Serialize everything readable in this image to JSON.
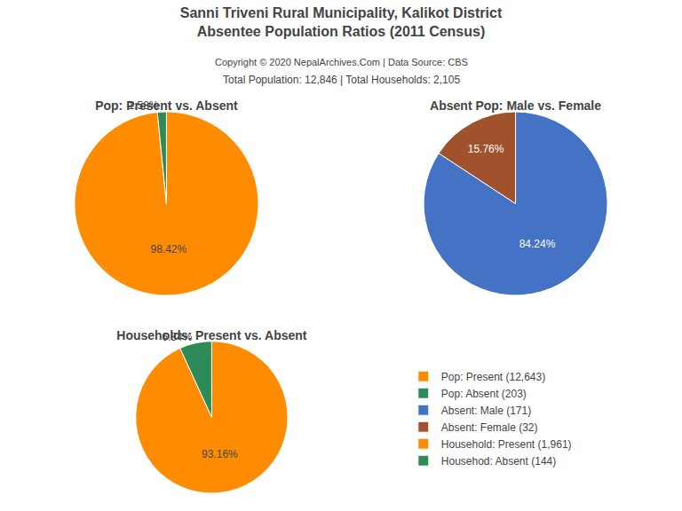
{
  "title": [
    "Sanni Triveni Rural Municipality, Kalikot District",
    "Absentee Population Ratios (2011 Census)"
  ],
  "subtitle": [
    "Copyright © 2020 NepalArchives.Com | Data Source: CBS",
    "Total Population: 12,846 | Total Households: 2,105"
  ],
  "legend": "lower right",
  "chart_data": [
    {
      "type": "pie",
      "title": "Pop: Present vs. Absent",
      "categories": [
        "Pop: Present (12,643)",
        "Pop: Absent (203)"
      ],
      "values": [
        98.42,
        1.58
      ],
      "value_labels": [
        "98.42%",
        "1.58%"
      ],
      "colors": [
        "#FF8C00",
        "#2E8B57"
      ]
    },
    {
      "type": "pie",
      "title": "Absent Pop: Male vs. Female",
      "categories": [
        "Absent: Male (171)",
        "Absent: Female (32)"
      ],
      "values": [
        84.24,
        15.76
      ],
      "value_labels": [
        "84.24%",
        "15.76%"
      ],
      "colors": [
        "#4472C4",
        "#A0522D"
      ]
    },
    {
      "type": "pie",
      "title": "Households: Present vs. Absent",
      "categories": [
        "Household: Present (1,961)",
        "Househod: Absent (144)"
      ],
      "values": [
        93.16,
        6.84
      ],
      "value_labels": [
        "93.16%",
        "6.84%"
      ],
      "colors": [
        "#FF8C00",
        "#2E8B57"
      ]
    }
  ]
}
